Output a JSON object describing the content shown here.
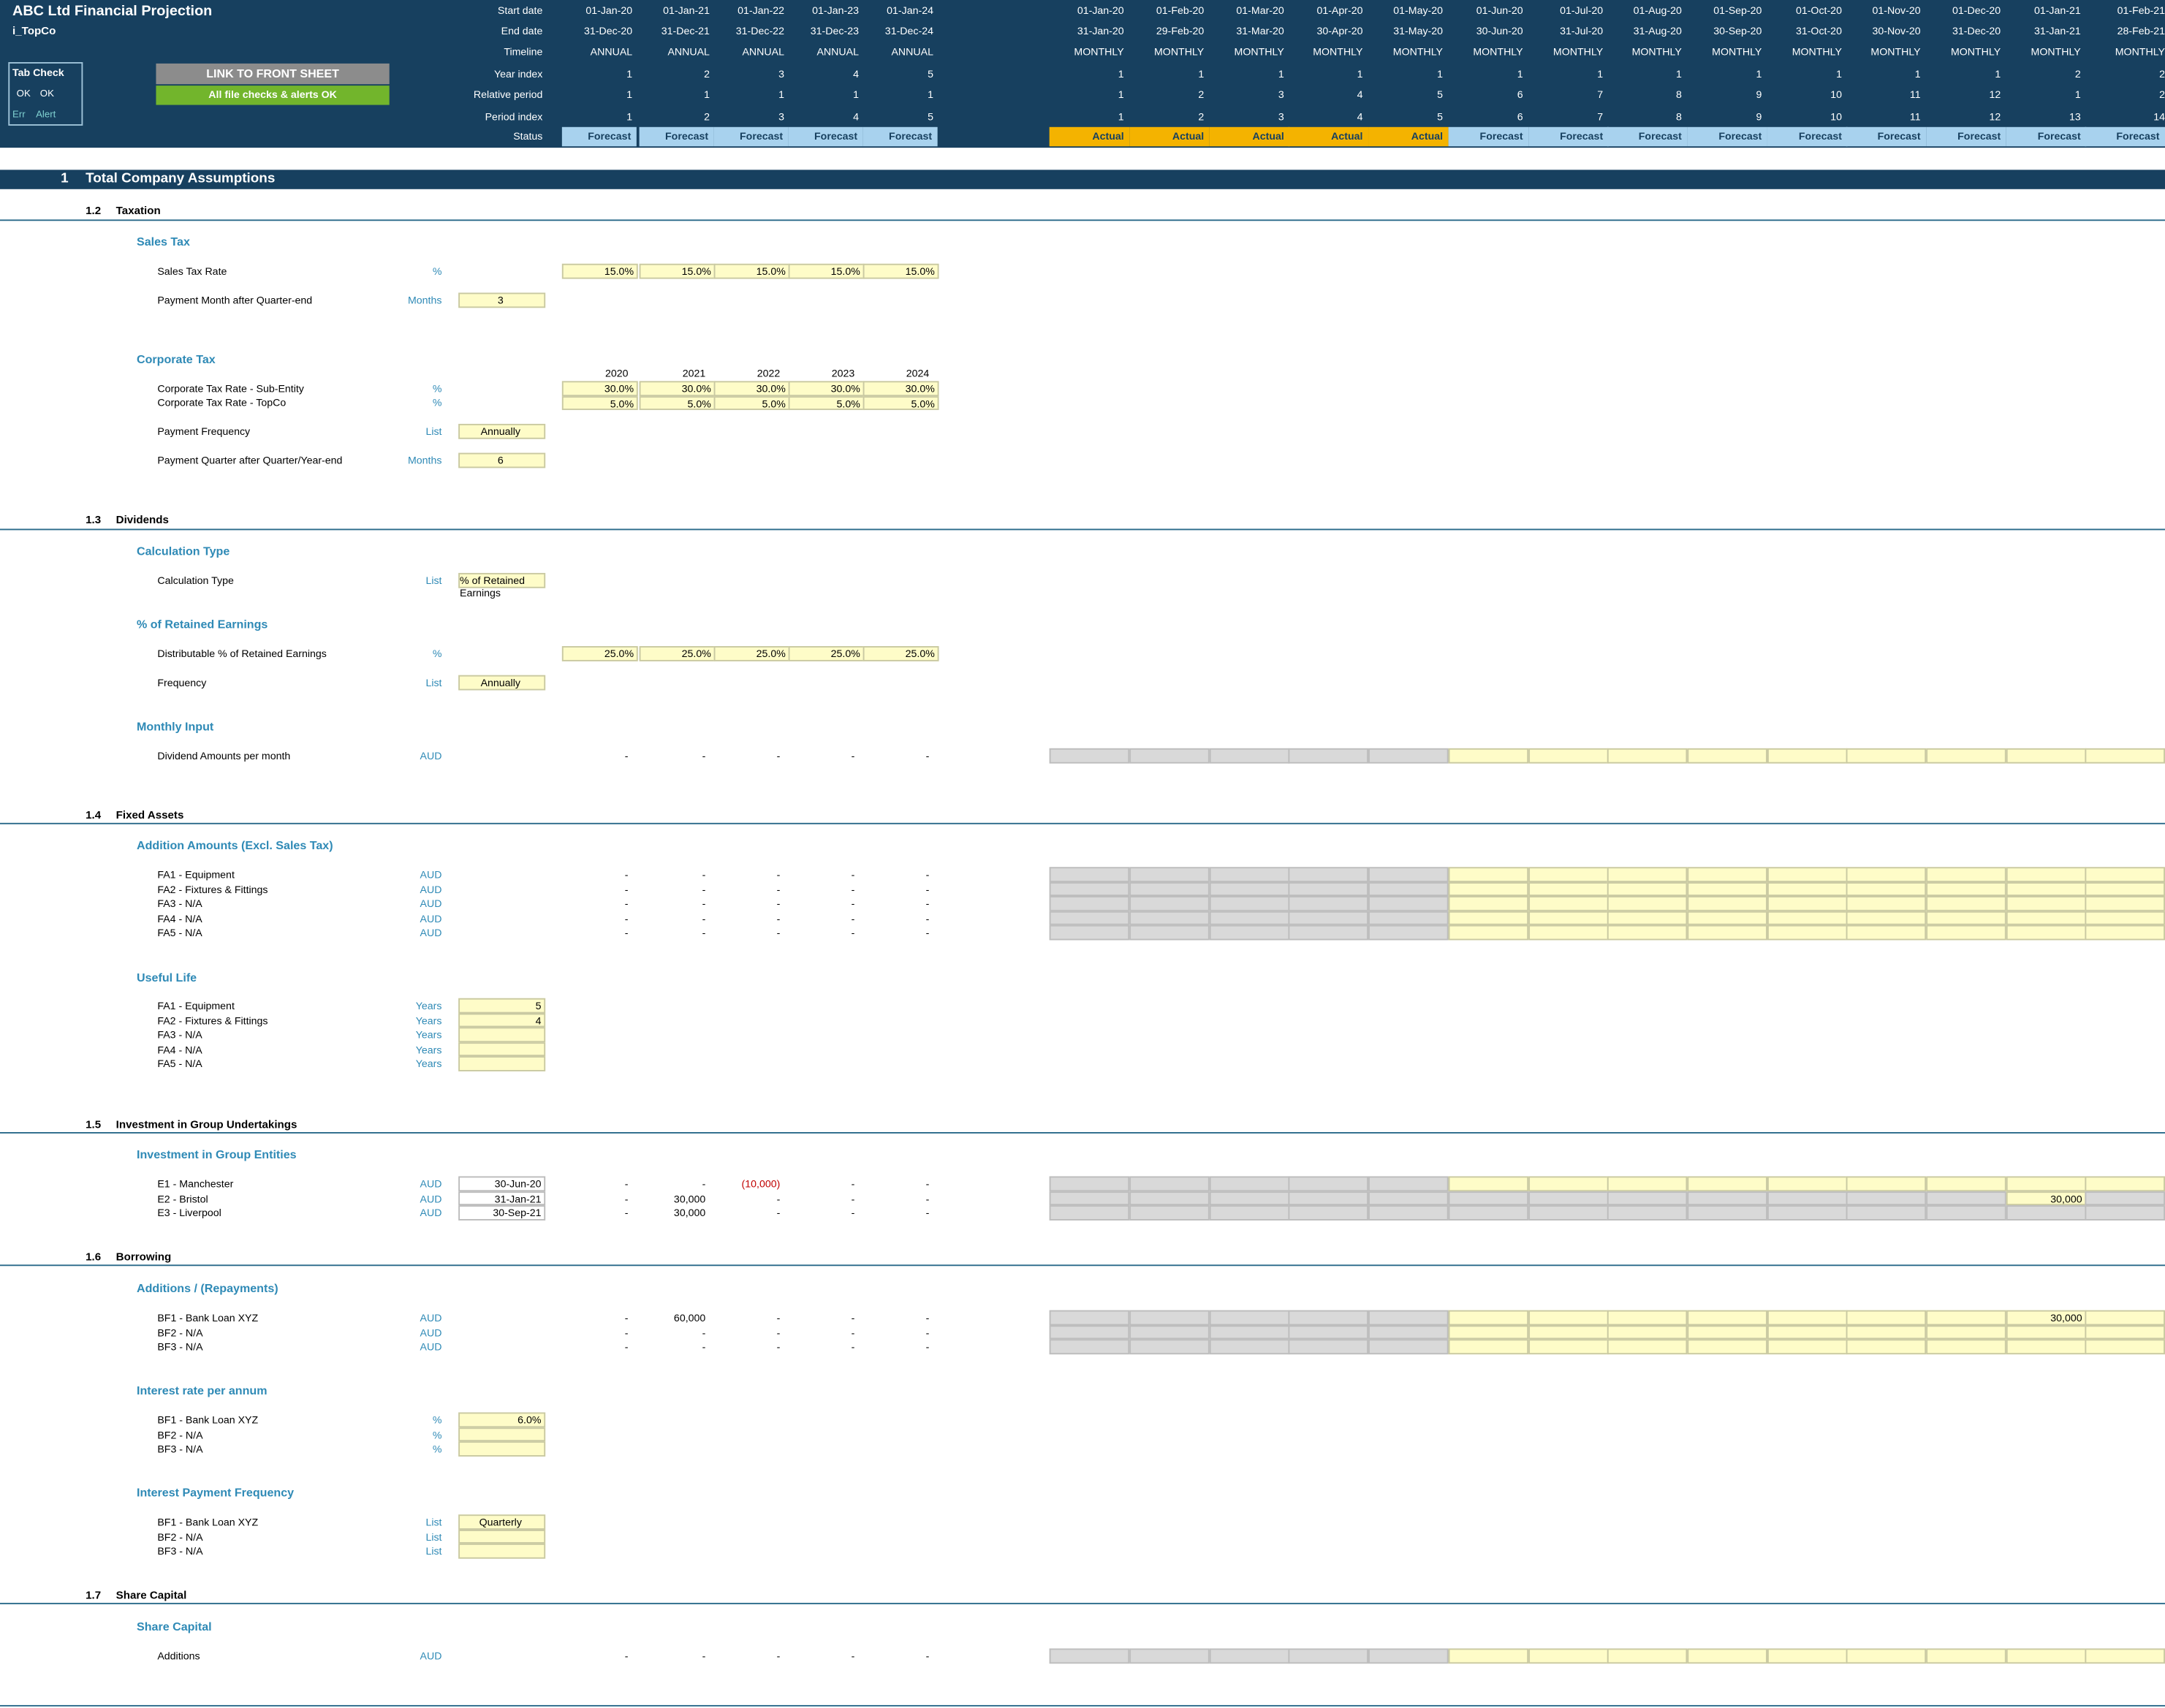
{
  "app": {
    "title": "ABC Ltd Financial Projection",
    "sheet": "i_TopCo"
  },
  "tab_check": {
    "title": "Tab Check",
    "ok1": "OK",
    "ok2": "OK",
    "err": "Err",
    "alert": "Alert"
  },
  "buttons": {
    "link_front": "LINK TO FRONT SHEET",
    "checks_ok": "All file checks & alerts OK"
  },
  "header_labels": [
    "Start date",
    "End date",
    "Timeline",
    "Year index",
    "Relative period",
    "Period index",
    "Status"
  ],
  "annual": {
    "start": [
      "01-Jan-20",
      "01-Jan-21",
      "01-Jan-22",
      "01-Jan-23",
      "01-Jan-24"
    ],
    "end": [
      "31-Dec-20",
      "31-Dec-21",
      "31-Dec-22",
      "31-Dec-23",
      "31-Dec-24"
    ],
    "timeline": [
      "ANNUAL",
      "ANNUAL",
      "ANNUAL",
      "ANNUAL",
      "ANNUAL"
    ],
    "year_index": [
      "1",
      "2",
      "3",
      "4",
      "5"
    ],
    "relative": [
      "1",
      "1",
      "1",
      "1",
      "1"
    ],
    "period": [
      "1",
      "2",
      "3",
      "4",
      "5"
    ],
    "status": [
      "Forecast",
      "Forecast",
      "Forecast",
      "Forecast",
      "Forecast"
    ]
  },
  "monthly": {
    "start": [
      "01-Jan-20",
      "01-Feb-20",
      "01-Mar-20",
      "01-Apr-20",
      "01-May-20",
      "01-Jun-20",
      "01-Jul-20",
      "01-Aug-20",
      "01-Sep-20",
      "01-Oct-20",
      "01-Nov-20",
      "01-Dec-20",
      "01-Jan-21",
      "01-Feb-21"
    ],
    "end": [
      "31-Jan-20",
      "29-Feb-20",
      "31-Mar-20",
      "30-Apr-20",
      "31-May-20",
      "30-Jun-20",
      "31-Jul-20",
      "31-Aug-20",
      "30-Sep-20",
      "31-Oct-20",
      "30-Nov-20",
      "31-Dec-20",
      "31-Jan-21",
      "28-Feb-21"
    ],
    "timeline": [
      "MONTHLY",
      "MONTHLY",
      "MONTHLY",
      "MONTHLY",
      "MONTHLY",
      "MONTHLY",
      "MONTHLY",
      "MONTHLY",
      "MONTHLY",
      "MONTHLY",
      "MONTHLY",
      "MONTHLY",
      "MONTHLY",
      "MONTHLY"
    ],
    "year_index": [
      "1",
      "1",
      "1",
      "1",
      "1",
      "1",
      "1",
      "1",
      "1",
      "1",
      "1",
      "1",
      "2",
      "2"
    ],
    "relative": [
      "1",
      "2",
      "3",
      "4",
      "5",
      "6",
      "7",
      "8",
      "9",
      "10",
      "11",
      "12",
      "1",
      "2"
    ],
    "period": [
      "1",
      "2",
      "3",
      "4",
      "5",
      "6",
      "7",
      "8",
      "9",
      "10",
      "11",
      "12",
      "13",
      "14"
    ],
    "status": [
      "Actual",
      "Actual",
      "Actual",
      "Actual",
      "Actual",
      "Forecast",
      "Forecast",
      "Forecast",
      "Forecast",
      "Forecast",
      "Forecast",
      "Forecast",
      "Forecast",
      "Forecast"
    ]
  },
  "section": {
    "num": "1",
    "title": "Total Company Assumptions"
  },
  "s12": {
    "num": "1.2",
    "title": "Taxation",
    "sales_tax": "Sales Tax",
    "sales_tax_rate": "Sales Tax Rate",
    "pct": "%",
    "rates": [
      "15.0%",
      "15.0%",
      "15.0%",
      "15.0%",
      "15.0%"
    ],
    "payment_month": "Payment Month after Quarter-end",
    "months": "Months",
    "payment_month_val": "3",
    "corp_tax": "Corporate Tax",
    "years": [
      "2020",
      "2021",
      "2022",
      "2023",
      "2024"
    ],
    "ct_sub": "Corporate Tax Rate - Sub-Entity",
    "ct_sub_vals": [
      "30.0%",
      "30.0%",
      "30.0%",
      "30.0%",
      "30.0%"
    ],
    "ct_top": "Corporate Tax Rate - TopCo",
    "ct_top_vals": [
      "5.0%",
      "5.0%",
      "5.0%",
      "5.0%",
      "5.0%"
    ],
    "pay_freq": "Payment Frequency",
    "list": "List",
    "pay_freq_val": "Annually",
    "pay_quarter": "Payment Quarter after Quarter/Year-end",
    "pay_quarter_val": "6"
  },
  "s13": {
    "num": "1.3",
    "title": "Dividends",
    "calc_type_h": "Calculation Type",
    "calc_type": "Calculation Type",
    "calc_type_val": "% of Retained Earnings",
    "pct_re_h": "% of Retained Earnings",
    "dist": "Distributable % of Retained Earnings",
    "dist_vals": [
      "25.0%",
      "25.0%",
      "25.0%",
      "25.0%",
      "25.0%"
    ],
    "freq": "Frequency",
    "freq_val": "Annually",
    "monthly_h": "Monthly Input",
    "div_amounts": "Dividend Amounts per month",
    "aud": "AUD"
  },
  "s14": {
    "num": "1.4",
    "title": "Fixed Assets",
    "add_h": "Addition Amounts (Excl. Sales Tax)",
    "items": [
      "FA1 - Equipment",
      "FA2 - Fixtures & Fittings",
      "FA3 - N/A",
      "FA4 - N/A",
      "FA5 - N/A"
    ],
    "useful_h": "Useful Life",
    "years_unit": "Years",
    "useful_vals": [
      "5",
      "4",
      "",
      "",
      ""
    ]
  },
  "s15": {
    "num": "1.5",
    "title": "Investment in Group Undertakings",
    "inv_h": "Investment in Group Entities",
    "rows": [
      {
        "label": "E1 - Manchester",
        "date": "30-Jun-20",
        "vals": [
          "-",
          "-",
          "(10,000)",
          "-",
          "-"
        ]
      },
      {
        "label": "E2 - Bristol",
        "date": "31-Jan-21",
        "vals": [
          "-",
          "30,000",
          "-",
          "-",
          "-"
        ]
      },
      {
        "label": "E3 - Liverpool",
        "date": "30-Sep-21",
        "vals": [
          "-",
          "30,000",
          "-",
          "-",
          "-"
        ]
      }
    ],
    "e2_month_val": "30,000"
  },
  "s16": {
    "num": "1.6",
    "title": "Borrowing",
    "add_h": "Additions / (Repayments)",
    "rows": [
      {
        "label": "BF1 - Bank Loan XYZ",
        "vals": [
          "-",
          "60,000",
          "-",
          "-",
          "-"
        ]
      },
      {
        "label": "BF2 - N/A",
        "vals": [
          "-",
          "-",
          "-",
          "-",
          "-"
        ]
      },
      {
        "label": "BF3 - N/A",
        "vals": [
          "-",
          "-",
          "-",
          "-",
          "-"
        ]
      }
    ],
    "bf1_month_val": "30,000",
    "rate_h": "Interest rate per annum",
    "rate_vals": [
      "6.0%",
      "",
      ""
    ],
    "freq_h": "Interest Payment Frequency",
    "freq_vals": [
      "Quarterly",
      "",
      ""
    ]
  },
  "s17": {
    "num": "1.7",
    "title": "Share Capital",
    "sc_h": "Share Capital",
    "additions": "Additions"
  },
  "dash": "-"
}
